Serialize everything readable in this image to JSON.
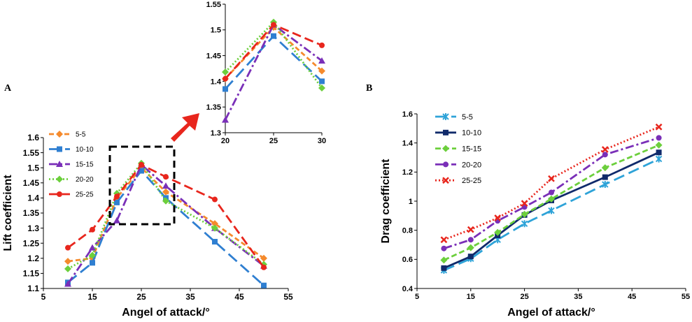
{
  "chart_data": [
    {
      "id": "A",
      "type": "line",
      "panel_label": "A",
      "xlabel": "Angel of attack/°",
      "ylabel": "Lift coefficient",
      "xlim": [
        5,
        55
      ],
      "ylim": [
        1.1,
        1.6
      ],
      "xticks": [
        "5",
        "15",
        "25",
        "35",
        "45",
        "55"
      ],
      "yticks": [
        "1.1",
        "1.15",
        "1.2",
        "1.25",
        "1.3",
        "1.35",
        "1.4",
        "1.45",
        "1.5",
        "1.55",
        "1.6"
      ],
      "x": [
        10,
        15,
        20,
        25,
        30,
        40,
        50
      ],
      "legend": "top-left",
      "series": [
        {
          "name": "5-5",
          "color": "#f58a2c",
          "dash": "7,4",
          "marker": "diamond",
          "values": [
            1.19,
            1.2,
            1.4,
            1.5,
            1.42,
            1.315,
            1.2
          ]
        },
        {
          "name": "10-10",
          "color": "#2f7fd1",
          "dash": "16,7",
          "marker": "square",
          "values": [
            1.12,
            1.185,
            1.385,
            1.49,
            1.4,
            1.255,
            1.11
          ]
        },
        {
          "name": "15-15",
          "color": "#7a2fb8",
          "dash": "12,4,3,4",
          "marker": "triangle",
          "values": [
            1.115,
            1.235,
            1.325,
            1.51,
            1.44,
            1.3,
            1.175
          ]
        },
        {
          "name": "20-20",
          "color": "#6ccf3c",
          "dash": "2,3",
          "marker": "diamond",
          "values": [
            1.165,
            1.21,
            1.415,
            1.515,
            1.39,
            1.3,
            1.18
          ]
        },
        {
          "name": "25-25",
          "color": "#e8261d",
          "dash": "13,6",
          "marker": "circle",
          "values": [
            1.235,
            1.295,
            1.405,
            1.51,
            1.47,
            1.395,
            1.17
          ]
        }
      ]
    },
    {
      "id": "inset",
      "type": "line",
      "panel_label": "",
      "xlabel": "",
      "ylabel": "",
      "xlim": [
        20,
        30
      ],
      "ylim": [
        1.3,
        1.55
      ],
      "xticks": [
        "20",
        "25",
        "30"
      ],
      "yticks": [
        "1.3",
        "1.35",
        "1.4",
        "1.45",
        "1.5",
        "1.55"
      ],
      "x": [
        20,
        25,
        30
      ],
      "series": [
        {
          "name": "5-5",
          "color": "#f58a2c",
          "dash": "7,4",
          "marker": "diamond",
          "values": [
            1.405,
            1.505,
            1.42
          ]
        },
        {
          "name": "10-10",
          "color": "#2f7fd1",
          "dash": "16,7",
          "marker": "square",
          "values": [
            1.385,
            1.488,
            1.4
          ]
        },
        {
          "name": "15-15",
          "color": "#7a2fb8",
          "dash": "12,4,3,4",
          "marker": "triangle",
          "values": [
            1.325,
            1.51,
            1.44
          ]
        },
        {
          "name": "20-20",
          "color": "#6ccf3c",
          "dash": "2,3",
          "marker": "diamond",
          "values": [
            1.418,
            1.515,
            1.387
          ]
        },
        {
          "name": "25-25",
          "color": "#e8261d",
          "dash": "13,6",
          "marker": "circle",
          "values": [
            1.405,
            1.51,
            1.47
          ]
        }
      ]
    },
    {
      "id": "B",
      "type": "line",
      "panel_label": "B",
      "xlabel": "Angel of attack/°",
      "ylabel": "Drag coefficient",
      "xlim": [
        5,
        55
      ],
      "ylim": [
        0.4,
        1.6
      ],
      "xticks": [
        "5",
        "15",
        "25",
        "35",
        "45",
        "55"
      ],
      "yticks": [
        "0.4",
        "0.6",
        "0.8",
        "1",
        "1.2",
        "1.4",
        "1.6"
      ],
      "x": [
        10,
        15,
        20,
        25,
        30,
        40,
        50
      ],
      "legend": "top-left",
      "series": [
        {
          "name": "5-5",
          "color": "#2ea3d8",
          "dash": "16,7",
          "marker": "star",
          "values": [
            0.525,
            0.605,
            0.735,
            0.845,
            0.935,
            1.115,
            1.29
          ]
        },
        {
          "name": "10-10",
          "color": "#102a6b",
          "dash": "none",
          "marker": "square",
          "values": [
            0.54,
            0.62,
            0.765,
            0.905,
            1.005,
            1.165,
            1.335
          ]
        },
        {
          "name": "15-15",
          "color": "#6ccf3c",
          "dash": "8,4",
          "marker": "diamond",
          "values": [
            0.595,
            0.68,
            0.785,
            0.91,
            1.015,
            1.23,
            1.385
          ]
        },
        {
          "name": "20-20",
          "color": "#7a2fb8",
          "dash": "12,4,3,4",
          "marker": "circle",
          "values": [
            0.675,
            0.735,
            0.865,
            0.96,
            1.06,
            1.32,
            1.435
          ]
        },
        {
          "name": "25-25",
          "color": "#e8261d",
          "dash": "2,3",
          "marker": "x",
          "values": [
            0.735,
            0.805,
            0.885,
            0.985,
            1.155,
            1.355,
            1.51
          ]
        }
      ]
    }
  ],
  "annotations": {
    "zoom_box_color": "#000000",
    "arrow_color": "#e8261d"
  }
}
